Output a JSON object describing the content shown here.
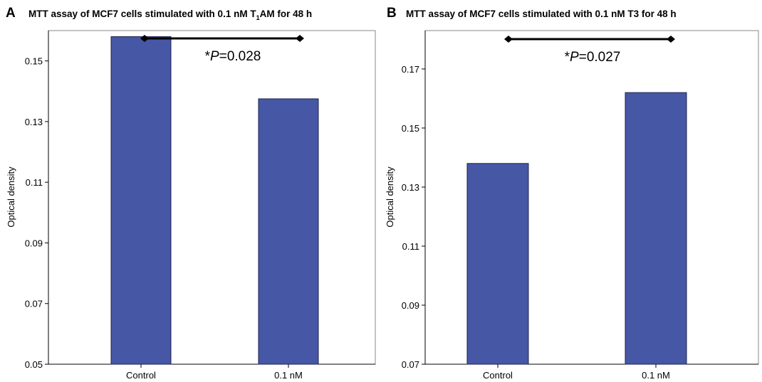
{
  "chart_data": [
    {
      "type": "bar",
      "panel_letter": "A",
      "title": "MTT assay of MCF7 cells stimulated with 0.1 nM T",
      "title_subscript": "1",
      "title_suffix": "AM for 48 h",
      "ylabel": "Optical density",
      "ylim": [
        0.05,
        0.16
      ],
      "yticks": [
        "0.05",
        "0.07",
        "0.09",
        "0.11",
        "0.13",
        "0.15"
      ],
      "categories": [
        "Control",
        "0.1 nM"
      ],
      "values": [
        0.158,
        0.1375
      ],
      "annotation_star": "*",
      "annotation_p": "P",
      "annotation_value": "=0.028",
      "bar_color": "#4657a6",
      "grid": false
    },
    {
      "type": "bar",
      "panel_letter": "B",
      "title": "MTT assay of MCF7 cells stimulated with 0.1 nM T3 for 48 h",
      "title_subscript": "",
      "title_suffix": "",
      "ylabel": "Optical density",
      "ylim": [
        0.07,
        0.183
      ],
      "yticks": [
        "0.07",
        "0.09",
        "0.11",
        "0.13",
        "0.15",
        "0.17"
      ],
      "categories": [
        "Control",
        "0.1 nM"
      ],
      "values": [
        0.138,
        0.162
      ],
      "annotation_star": "*",
      "annotation_p": "P",
      "annotation_value": "=0.027",
      "bar_color": "#4657a6",
      "grid": false
    }
  ]
}
